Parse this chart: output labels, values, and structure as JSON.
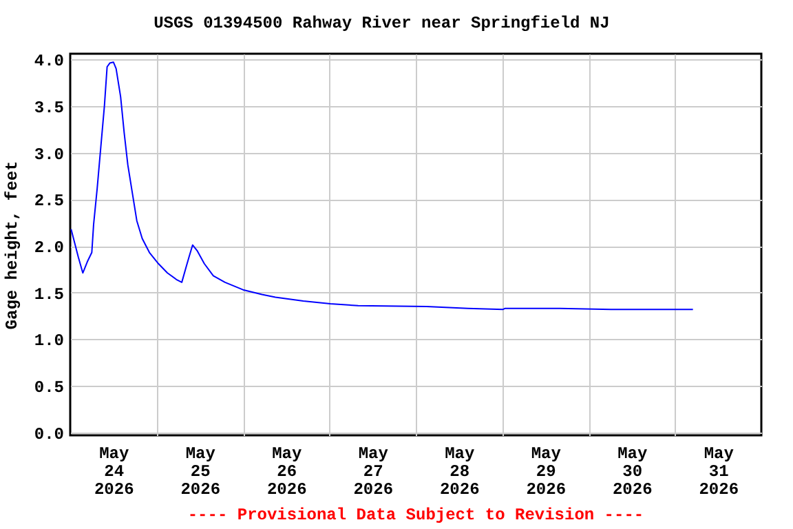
{
  "chart_data": {
    "type": "line",
    "title": "USGS 01394500 Rahway River near Springfield NJ",
    "ylabel": "Gage height, feet",
    "annotations": [
      "---- Provisional Data Subject to Revision ----"
    ],
    "x": [
      "2026-05-24T00:15",
      "2026-05-24T01:15",
      "2026-05-24T02:15",
      "2026-05-24T03:30",
      "2026-05-24T04:45",
      "2026-05-24T06:00",
      "2026-05-24T06:30",
      "2026-05-24T07:30",
      "2026-05-24T08:30",
      "2026-05-24T09:30",
      "2026-05-24T10:15",
      "2026-05-24T11:00",
      "2026-05-24T12:00",
      "2026-05-24T12:45",
      "2026-05-24T14:00",
      "2026-05-24T15:00",
      "2026-05-24T16:00",
      "2026-05-24T17:15",
      "2026-05-24T18:30",
      "2026-05-24T20:00",
      "2026-05-24T22:00",
      "2026-05-25T00:30",
      "2026-05-25T03:00",
      "2026-05-25T05:30",
      "2026-05-25T07:00",
      "2026-05-25T08:15",
      "2026-05-25T09:00",
      "2026-05-25T10:00",
      "2026-05-25T11:15",
      "2026-05-25T13:15",
      "2026-05-25T15:45",
      "2026-05-25T19:00",
      "2026-05-26T00:00",
      "2026-05-26T05:15",
      "2026-05-26T09:00",
      "2026-05-26T16:45",
      "2026-05-27T00:15",
      "2026-05-27T08:00",
      "2026-05-28T03:00",
      "2026-05-28T14:30",
      "2026-05-29T00:15",
      "2026-05-29T00:45",
      "2026-05-29T16:00",
      "2026-05-30T06:15",
      "2026-05-31T05:00"
    ],
    "series": [
      {
        "color": "#0000ff",
        "values": [
          2.18,
          2.03,
          1.88,
          1.71,
          1.83,
          1.93,
          2.23,
          2.62,
          3.06,
          3.5,
          3.92,
          3.96,
          3.97,
          3.9,
          3.6,
          3.21,
          2.87,
          2.57,
          2.27,
          2.08,
          1.93,
          1.81,
          1.71,
          1.64,
          1.61,
          1.78,
          1.88,
          2.01,
          1.95,
          1.81,
          1.68,
          1.61,
          1.53,
          1.48,
          1.45,
          1.41,
          1.38,
          1.36,
          1.35,
          1.33,
          1.32,
          1.33,
          1.33,
          1.32,
          1.32
        ]
      }
    ],
    "xlim": [
      "2026-05-24T00:00",
      "2026-06-01T00:00"
    ],
    "xticks": [
      {
        "value": "2026-05-24T12:00",
        "label": "May\n24\n2026"
      },
      {
        "value": "2026-05-25T00:00",
        "label": null
      },
      {
        "value": "2026-05-25T12:00",
        "label": "May\n25\n2026"
      },
      {
        "value": "2026-05-26T00:00",
        "label": null
      },
      {
        "value": "2026-05-26T12:00",
        "label": "May\n26\n2026"
      },
      {
        "value": "2026-05-27T00:00",
        "label": null
      },
      {
        "value": "2026-05-27T12:00",
        "label": "May\n27\n2026"
      },
      {
        "value": "2026-05-28T00:00",
        "label": null
      },
      {
        "value": "2026-05-28T12:00",
        "label": "May\n28\n2026"
      },
      {
        "value": "2026-05-29T00:00",
        "label": null
      },
      {
        "value": "2026-05-29T12:00",
        "label": "May\n29\n2026"
      },
      {
        "value": "2026-05-30T00:00",
        "label": null
      },
      {
        "value": "2026-05-30T12:00",
        "label": "May\n30\n2026"
      },
      {
        "value": "2026-05-31T00:00",
        "label": null
      },
      {
        "value": "2026-05-31T12:00",
        "label": "May\n31\n2026"
      }
    ],
    "ylim": [
      -0.03,
      4.06
    ],
    "yticks": [
      {
        "value": 0,
        "label": "0.0"
      },
      {
        "value": 0.5,
        "label": "0.5"
      },
      {
        "value": 1,
        "label": "1.0"
      },
      {
        "value": 1.5,
        "label": "1.5"
      },
      {
        "value": 2,
        "label": "2.0"
      },
      {
        "value": 2.5,
        "label": "2.5"
      },
      {
        "value": 3,
        "label": "3.0"
      },
      {
        "value": 3.5,
        "label": "3.5"
      },
      {
        "value": 4,
        "label": "4.0"
      }
    ],
    "grid": true
  }
}
